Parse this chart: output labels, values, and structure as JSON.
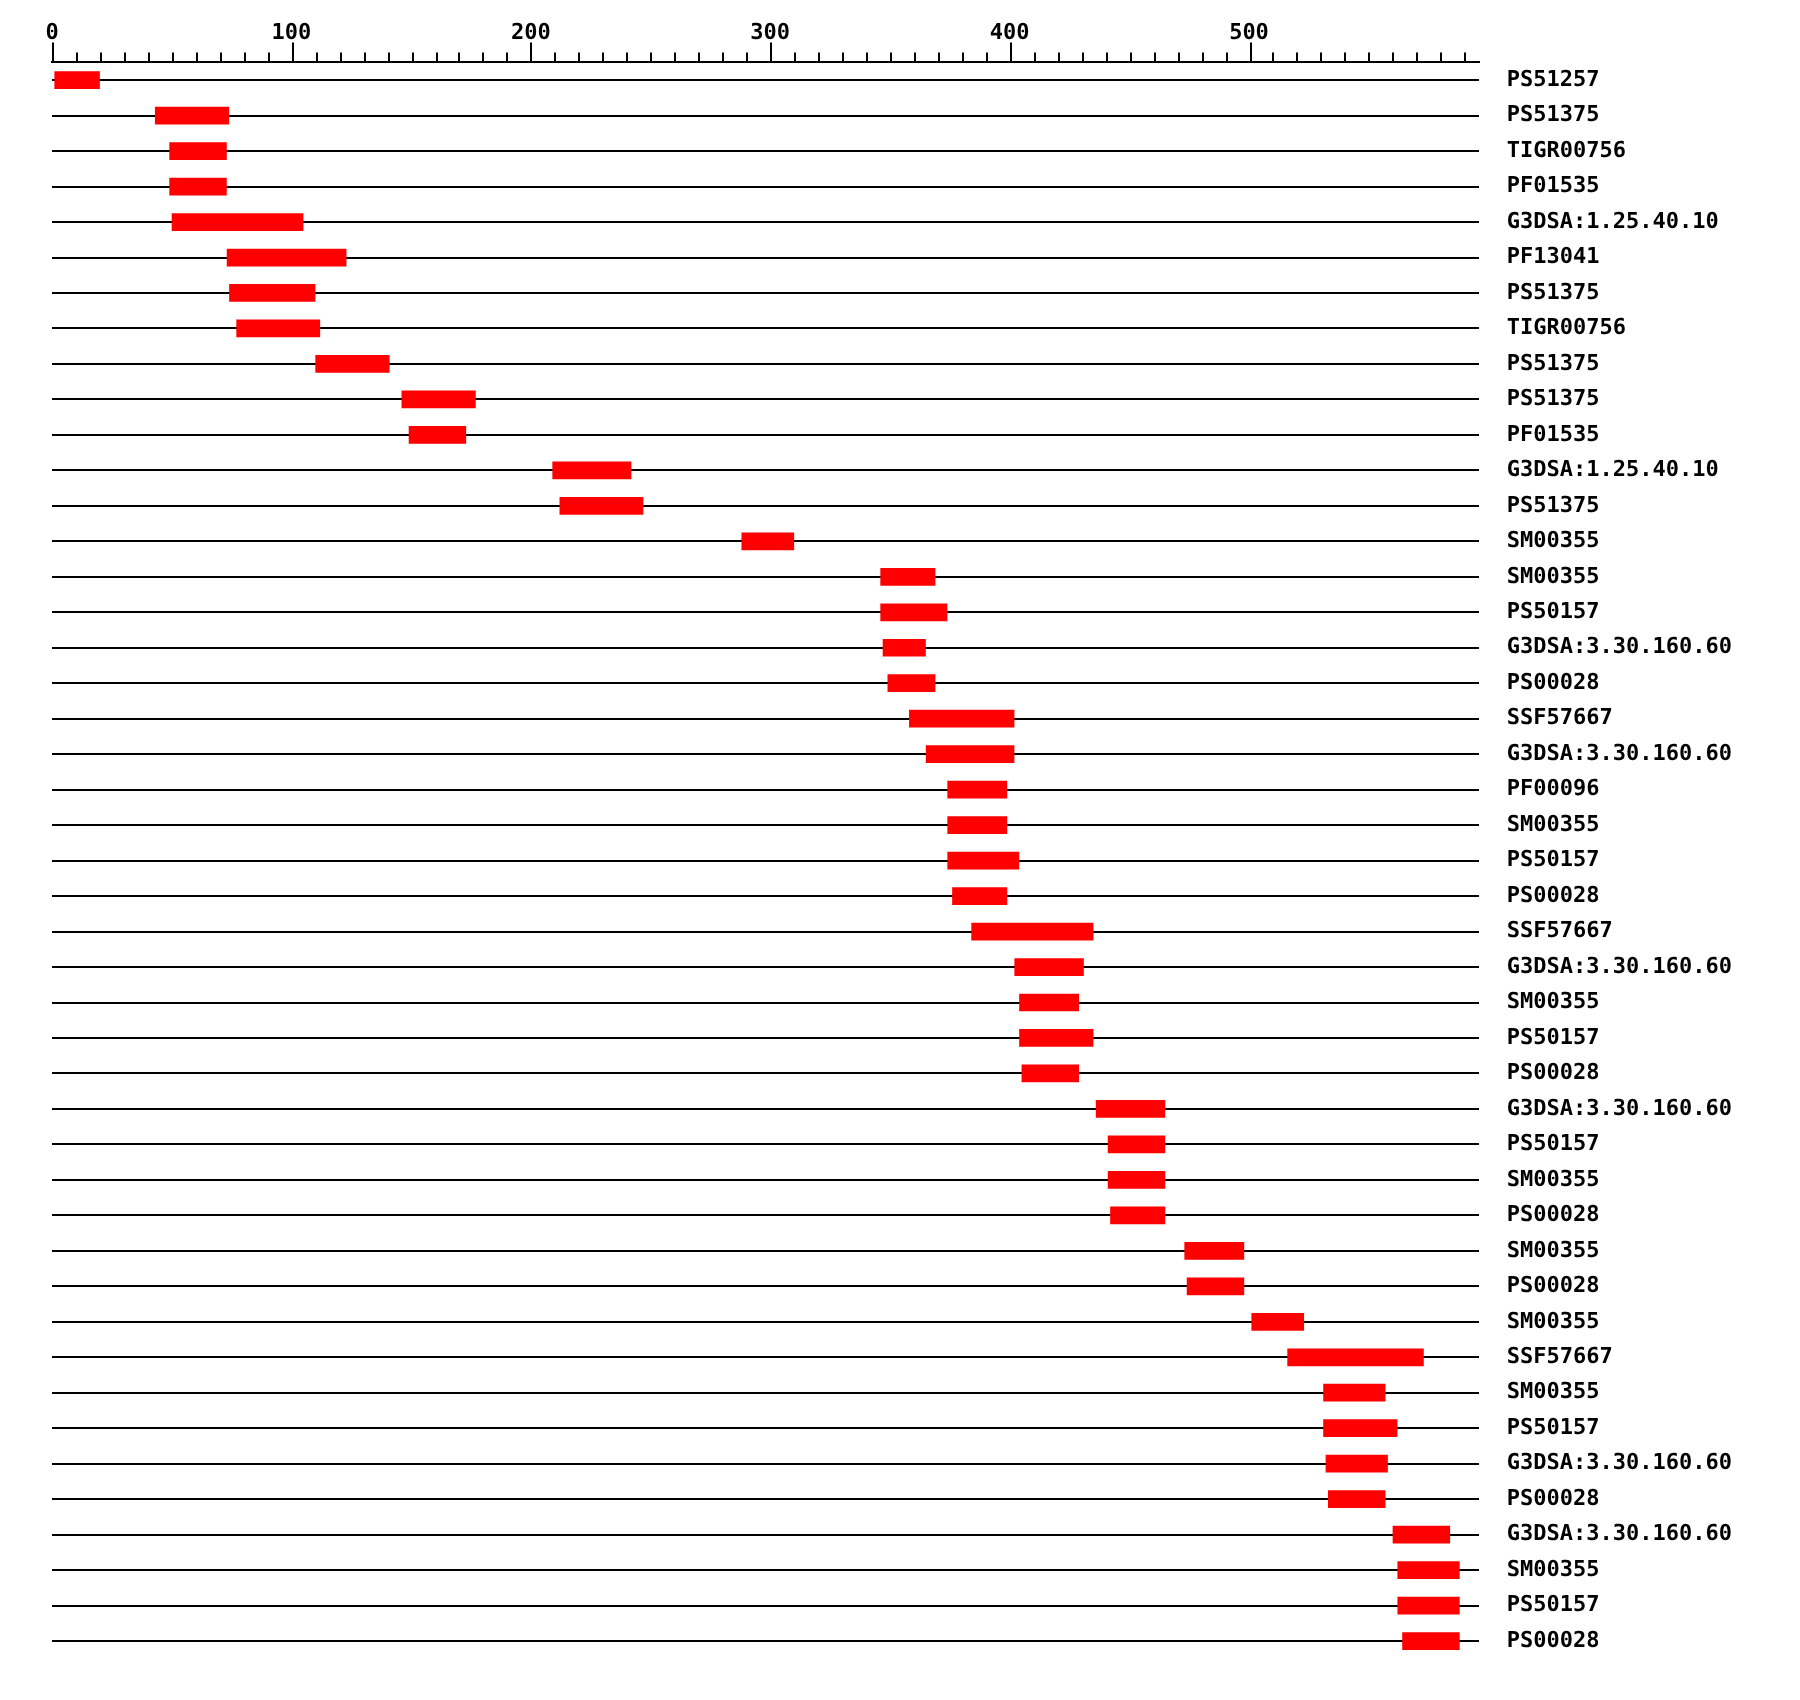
{
  "chart_data": {
    "type": "bar",
    "orientation": "horizontal",
    "color": "#ff0000",
    "grid": "y",
    "categories": [
      "PS51257",
      "PS51375",
      "TIGR00756",
      "PF01535",
      "G3DSA:1.25.40.10",
      "PF13041",
      "PS51375",
      "TIGR00756",
      "PS51375",
      "PS51375",
      "PF01535",
      "G3DSA:1.25.40.10",
      "PS51375",
      "SM00355",
      "SM00355",
      "PS50157",
      "G3DSA:3.30.160.60",
      "PS00028",
      "SSF57667",
      "G3DSA:3.30.160.60",
      "PF00096",
      "SM00355",
      "PS50157",
      "PS00028",
      "SSF57667",
      "G3DSA:3.30.160.60",
      "SM00355",
      "PS50157",
      "PS00028",
      "G3DSA:3.30.160.60",
      "PS50157",
      "SM00355",
      "PS00028",
      "SM00355",
      "PS00028",
      "SM00355",
      "SSF57667",
      "SM00355",
      "PS50157",
      "G3DSA:3.30.160.60",
      "PS00028",
      "G3DSA:3.30.160.60",
      "SM00355",
      "PS50157",
      "PS00028"
    ],
    "base": [
      1,
      43,
      49,
      49,
      50,
      73,
      74,
      77,
      110,
      146,
      149,
      209,
      212,
      288,
      346,
      346,
      347,
      349,
      358,
      365,
      374,
      374,
      374,
      376,
      384,
      402,
      404,
      404,
      405,
      436,
      441,
      441,
      442,
      473,
      474,
      501,
      516,
      531,
      531,
      532,
      533,
      560,
      562,
      562,
      564
    ],
    "values": [
      19,
      31,
      24,
      24,
      55,
      50,
      36,
      35,
      31,
      31,
      24,
      33,
      35,
      22,
      23,
      28,
      18,
      20,
      44,
      37,
      25,
      25,
      30,
      23,
      51,
      29,
      25,
      31,
      24,
      29,
      24,
      24,
      23,
      25,
      24,
      22,
      57,
      26,
      31,
      26,
      24,
      24,
      26,
      26,
      24
    ],
    "xlim": [
      0,
      596
    ],
    "xticks": [
      0,
      {
        "value": 10,
        "label": null
      },
      {
        "value": 20,
        "label": null
      },
      {
        "value": 30,
        "label": null
      },
      {
        "value": 40,
        "label": null
      },
      {
        "value": 50,
        "label": null
      },
      {
        "value": 60,
        "label": null
      },
      {
        "value": 70,
        "label": null
      },
      {
        "value": 80,
        "label": null
      },
      {
        "value": 90,
        "label": null
      },
      100,
      {
        "value": 110,
        "label": null
      },
      {
        "value": 120,
        "label": null
      },
      {
        "value": 130,
        "label": null
      },
      {
        "value": 140,
        "label": null
      },
      {
        "value": 150,
        "label": null
      },
      {
        "value": 160,
        "label": null
      },
      {
        "value": 170,
        "label": null
      },
      {
        "value": 180,
        "label": null
      },
      {
        "value": 190,
        "label": null
      },
      200,
      {
        "value": 210,
        "label": null
      },
      {
        "value": 220,
        "label": null
      },
      {
        "value": 230,
        "label": null
      },
      {
        "value": 240,
        "label": null
      },
      {
        "value": 250,
        "label": null
      },
      {
        "value": 260,
        "label": null
      },
      {
        "value": 270,
        "label": null
      },
      {
        "value": 280,
        "label": null
      },
      {
        "value": 290,
        "label": null
      },
      300,
      {
        "value": 310,
        "label": null
      },
      {
        "value": 320,
        "label": null
      },
      {
        "value": 330,
        "label": null
      },
      {
        "value": 340,
        "label": null
      },
      {
        "value": 350,
        "label": null
      },
      {
        "value": 360,
        "label": null
      },
      {
        "value": 370,
        "label": null
      },
      {
        "value": 380,
        "label": null
      },
      {
        "value": 390,
        "label": null
      },
      400,
      {
        "value": 410,
        "label": null
      },
      {
        "value": 420,
        "label": null
      },
      {
        "value": 430,
        "label": null
      },
      {
        "value": 440,
        "label": null
      },
      {
        "value": 450,
        "label": null
      },
      {
        "value": 460,
        "label": null
      },
      {
        "value": 470,
        "label": null
      },
      {
        "value": 480,
        "label": null
      },
      {
        "value": 490,
        "label": null
      },
      500,
      {
        "value": 510,
        "label": null
      },
      {
        "value": 520,
        "label": null
      },
      {
        "value": 530,
        "label": null
      },
      {
        "value": 540,
        "label": null
      },
      {
        "value": 550,
        "label": null
      },
      {
        "value": 560,
        "label": null
      },
      {
        "value": 570,
        "label": null
      },
      {
        "value": 580,
        "label": null
      },
      {
        "value": 590,
        "label": null
      }
    ]
  }
}
